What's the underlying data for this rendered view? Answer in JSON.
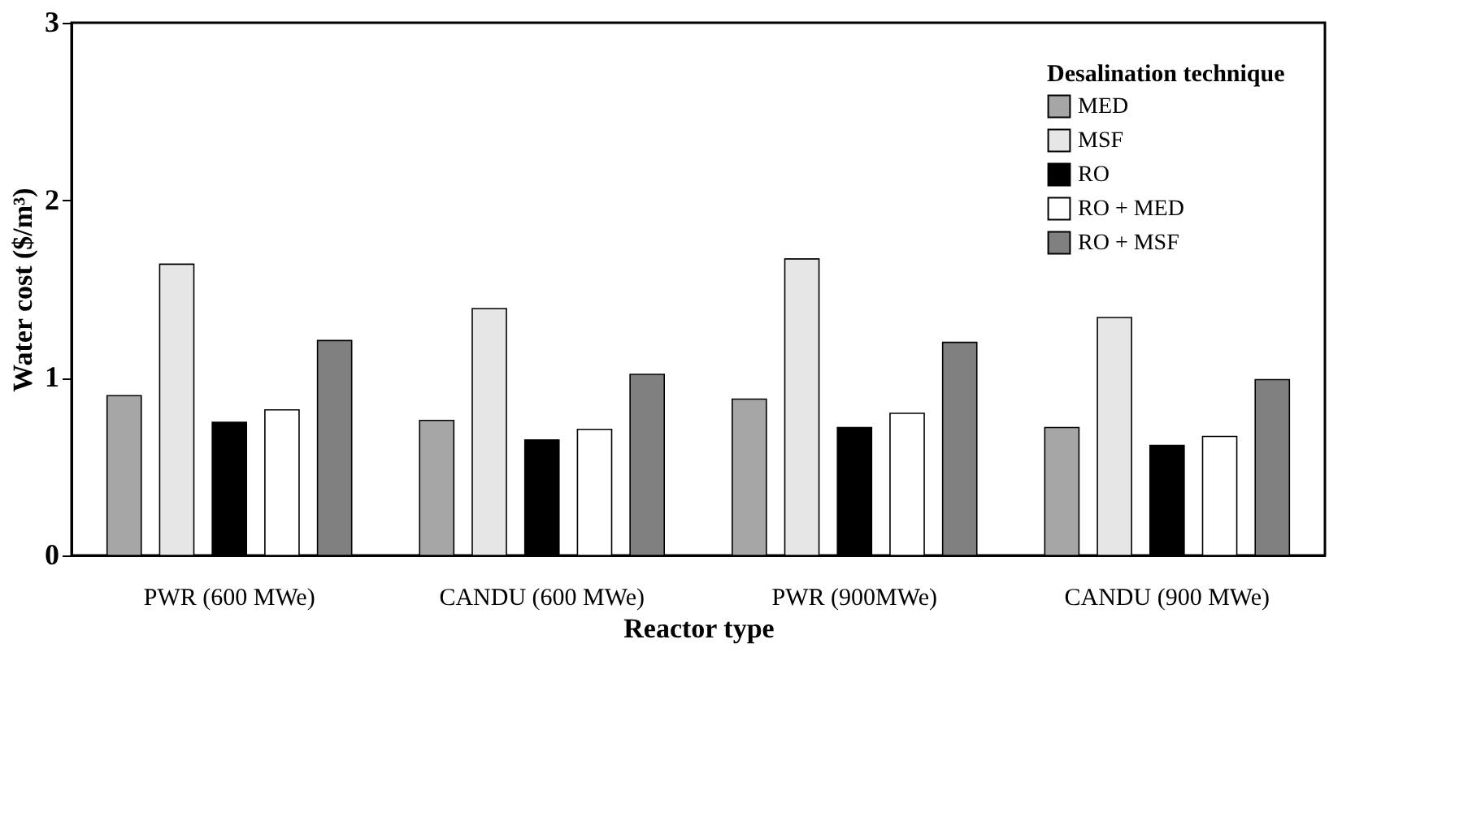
{
  "chart_data": {
    "type": "bar",
    "xlabel": "Reactor type",
    "ylabel": "Water cost ($/m³)",
    "legend_title": "Desalination technique",
    "legend": "top right",
    "grid": false,
    "categories": [
      "PWR (600 MWe)",
      "CANDU (600 MWe)",
      "PWR (900MWe)",
      "CANDU (900 MWe)"
    ],
    "ylim": [
      0,
      3
    ],
    "yticks": [
      0,
      1,
      2,
      3
    ],
    "series": [
      {
        "name": "MED",
        "color": "#a6a6a6",
        "values": [
          0.9,
          0.76,
          0.88,
          0.72
        ]
      },
      {
        "name": "MSF",
        "color": "#e6e6e6",
        "values": [
          1.64,
          1.39,
          1.67,
          1.34
        ]
      },
      {
        "name": "RO",
        "color": "#000000",
        "values": [
          0.75,
          0.65,
          0.72,
          0.62
        ]
      },
      {
        "name": "RO + MED",
        "color": "#ffffff",
        "values": [
          0.82,
          0.71,
          0.8,
          0.67
        ]
      },
      {
        "name": "RO + MSF",
        "color": "#808080",
        "values": [
          1.21,
          1.02,
          1.2,
          0.99
        ]
      }
    ]
  }
}
